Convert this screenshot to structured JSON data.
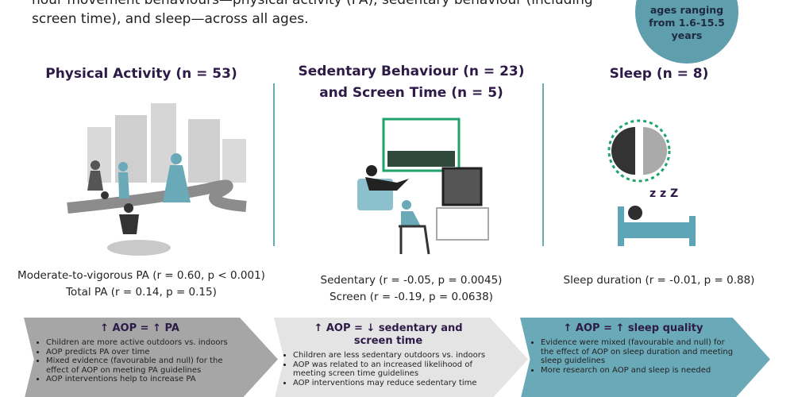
{
  "intro": {
    "lines": [
      "hour movement behaviours—physical activity (PA), sedentary behaviour (including",
      "screen time), and sleep—across all ages."
    ]
  },
  "badge": {
    "lines": [
      "ages ranging",
      "from 1.6-15.5",
      "years"
    ]
  },
  "columns": [
    {
      "title": [
        "Physical Activity (n = 53)"
      ],
      "stats": [
        "Moderate-to-vigorous PA (r = 0.60, p < 0.001)",
        "Total PA (r = 0.14, p = 0.15)"
      ],
      "finding": {
        "title": [
          "↑ AOP = ↑ PA"
        ],
        "bullets": [
          "Children are more active outdoors vs. indoors",
          "AOP predicts PA over time",
          "Mixed evidence (favourable and null) for the effect of AOP on meeting PA guidelines",
          "AOP interventions help to increase PA"
        ]
      }
    },
    {
      "title": [
        "Sedentary Behaviour (n = 23)",
        "and Screen Time (n = 5)"
      ],
      "stats": [
        "Sedentary (r = -0.05, p = 0.0045)",
        "Screen (r = -0.19, p = 0.0638)"
      ],
      "finding": {
        "title": [
          "↑ AOP = ↓ sedentary and",
          "screen time"
        ],
        "bullets": [
          "Children are less sedentary outdoors vs. indoors",
          "AOP was related to an increased likelihood of meeting screen time guidelines",
          "AOP interventions may reduce sedentary time"
        ]
      }
    },
    {
      "title": [
        "Sleep (n = 8)"
      ],
      "stats": [
        "Sleep duration (r = -0.01, p = 0.88)"
      ],
      "finding": {
        "title": [
          "↑ AOP = ↑ sleep quality"
        ],
        "bullets": [
          "Evidence were mixed (favourable and null) for the effect of AOP on sleep duration and meeting sleep guidelines",
          "More research on AOP and sleep is needed"
        ]
      }
    }
  ]
}
